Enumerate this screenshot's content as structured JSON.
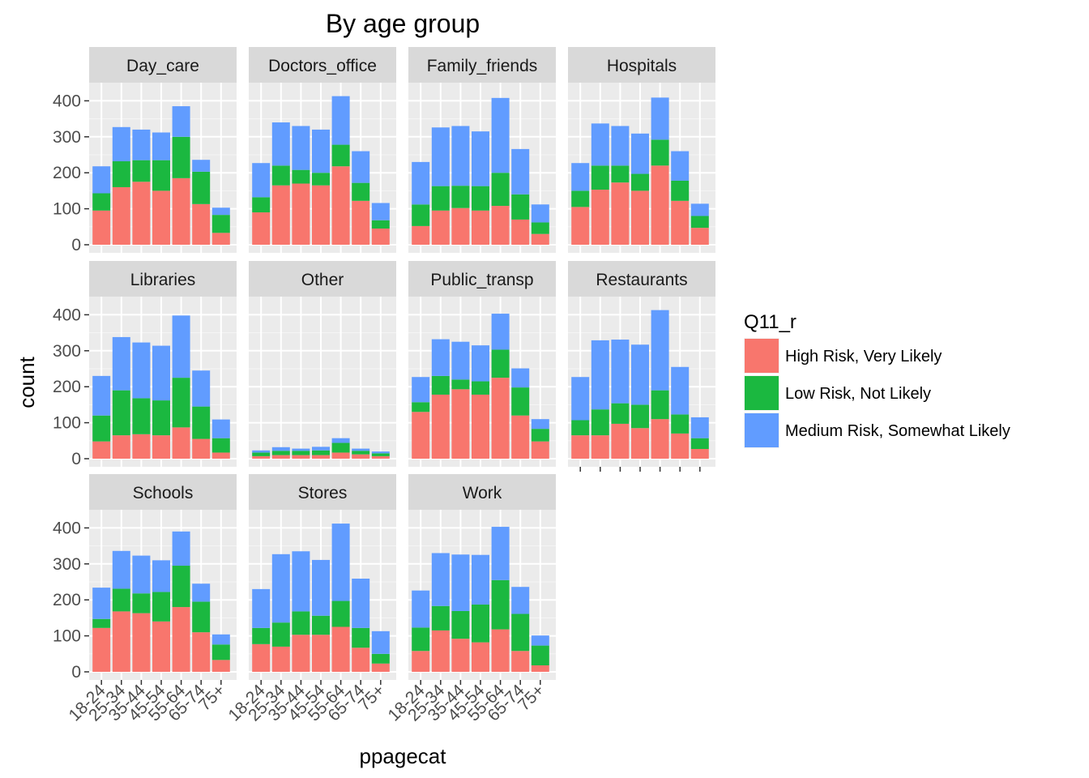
{
  "chart_data": {
    "type": "bar",
    "stacked": true,
    "title": "By age group",
    "xlabel": "ppagecat",
    "ylabel": "count",
    "ylim": [
      0,
      440
    ],
    "yticks": [
      0,
      100,
      200,
      300,
      400
    ],
    "grid": true,
    "legend": {
      "title": "Q11_r",
      "position": "right",
      "entries": [
        "High Risk, Very Likely",
        "Low Risk, Not Likely",
        "Medium Risk, Somewhat Likely"
      ]
    },
    "colors": {
      "High Risk, Very Likely": "#F8766D",
      "Low Risk, Not Likely": "#1BB840",
      "Medium Risk, Somewhat Likely": "#619CFF"
    },
    "categories": [
      "18-24",
      "25-34",
      "35-44",
      "45-54",
      "55-64",
      "65-74",
      "75+"
    ],
    "facets": [
      {
        "name": "Day_care",
        "series": [
          {
            "name": "High Risk, Very Likely",
            "values": [
              95,
              160,
              175,
              150,
              185,
              113,
              33
            ]
          },
          {
            "name": "Low Risk, Not Likely",
            "values": [
              48,
              72,
              60,
              85,
              115,
              90,
              50
            ]
          },
          {
            "name": "Medium Risk, Somewhat Likely",
            "values": [
              75,
              95,
              85,
              77,
              85,
              33,
              20
            ]
          }
        ]
      },
      {
        "name": "Doctors_office",
        "series": [
          {
            "name": "High Risk, Very Likely",
            "values": [
              90,
              165,
              170,
              165,
              218,
              122,
              45
            ]
          },
          {
            "name": "Low Risk, Not Likely",
            "values": [
              42,
              55,
              38,
              35,
              60,
              50,
              23
            ]
          },
          {
            "name": "Medium Risk, Somewhat Likely",
            "values": [
              95,
              120,
              122,
              120,
              135,
              88,
              48
            ]
          }
        ]
      },
      {
        "name": "Family_friends",
        "series": [
          {
            "name": "High Risk, Very Likely",
            "values": [
              52,
              95,
              102,
              95,
              108,
              70,
              30
            ]
          },
          {
            "name": "Low Risk, Not Likely",
            "values": [
              60,
              68,
              62,
              68,
              92,
              70,
              32
            ]
          },
          {
            "name": "Medium Risk, Somewhat Likely",
            "values": [
              118,
              163,
              166,
              152,
              208,
              126,
              50
            ]
          }
        ]
      },
      {
        "name": "Hospitals",
        "series": [
          {
            "name": "High Risk, Very Likely",
            "values": [
              105,
              153,
              173,
              150,
              220,
              122,
              47
            ]
          },
          {
            "name": "Low Risk, Not Likely",
            "values": [
              45,
              67,
              47,
              47,
              72,
              56,
              33
            ]
          },
          {
            "name": "Medium Risk, Somewhat Likely",
            "values": [
              77,
              117,
              110,
              112,
              117,
              82,
              34
            ]
          }
        ]
      },
      {
        "name": "Libraries",
        "series": [
          {
            "name": "High Risk, Very Likely",
            "values": [
              48,
              65,
              68,
              65,
              87,
              55,
              17
            ]
          },
          {
            "name": "Low Risk, Not Likely",
            "values": [
              72,
              125,
              100,
              97,
              138,
              90,
              40
            ]
          },
          {
            "name": "Medium Risk, Somewhat Likely",
            "values": [
              110,
              148,
              155,
              152,
              173,
              100,
              52
            ]
          }
        ]
      },
      {
        "name": "Other",
        "series": [
          {
            "name": "High Risk, Very Likely",
            "values": [
              7,
              10,
              10,
              10,
              17,
              12,
              7
            ]
          },
          {
            "name": "Low Risk, Not Likely",
            "values": [
              10,
              12,
              12,
              13,
              27,
              10,
              8
            ]
          },
          {
            "name": "Medium Risk, Somewhat Likely",
            "values": [
              6,
              10,
              6,
              10,
              13,
              6,
              5
            ]
          }
        ]
      },
      {
        "name": "Public_transp",
        "series": [
          {
            "name": "High Risk, Very Likely",
            "values": [
              130,
              178,
              193,
              178,
              225,
              120,
              48
            ]
          },
          {
            "name": "Low Risk, Not Likely",
            "values": [
              27,
              52,
              27,
              37,
              78,
              78,
              35
            ]
          },
          {
            "name": "Medium Risk, Somewhat Likely",
            "values": [
              70,
              102,
              105,
              100,
              100,
              53,
              27
            ]
          }
        ]
      },
      {
        "name": "Restaurants",
        "series": [
          {
            "name": "High Risk, Very Likely",
            "values": [
              65,
              65,
              97,
              85,
              110,
              70,
              27
            ]
          },
          {
            "name": "Low Risk, Not Likely",
            "values": [
              42,
              72,
              57,
              65,
              80,
              53,
              30
            ]
          },
          {
            "name": "Medium Risk, Somewhat Likely",
            "values": [
              120,
              192,
              177,
              167,
              223,
              132,
              58
            ]
          }
        ]
      },
      {
        "name": "Schools",
        "series": [
          {
            "name": "High Risk, Very Likely",
            "values": [
              122,
              168,
              163,
              140,
              180,
              110,
              33
            ]
          },
          {
            "name": "Low Risk, Not Likely",
            "values": [
              25,
              63,
              55,
              82,
              115,
              85,
              43
            ]
          },
          {
            "name": "Medium Risk, Somewhat Likely",
            "values": [
              87,
              105,
              105,
              88,
              95,
              50,
              28
            ]
          }
        ]
      },
      {
        "name": "Stores",
        "series": [
          {
            "name": "High Risk, Very Likely",
            "values": [
              77,
              70,
              103,
              103,
              125,
              67,
              23
            ]
          },
          {
            "name": "Low Risk, Not Likely",
            "values": [
              45,
              67,
              65,
              53,
              72,
              55,
              27
            ]
          },
          {
            "name": "Medium Risk, Somewhat Likely",
            "values": [
              108,
              190,
              167,
              155,
              215,
              137,
              63
            ]
          }
        ]
      },
      {
        "name": "Work",
        "series": [
          {
            "name": "High Risk, Very Likely",
            "values": [
              58,
              115,
              92,
              82,
              118,
              58,
              18
            ]
          },
          {
            "name": "Low Risk, Not Likely",
            "values": [
              65,
              68,
              77,
              105,
              137,
              103,
              55
            ]
          },
          {
            "name": "Medium Risk, Somewhat Likely",
            "values": [
              103,
              147,
              157,
              138,
              148,
              75,
              28
            ]
          }
        ]
      }
    ]
  }
}
